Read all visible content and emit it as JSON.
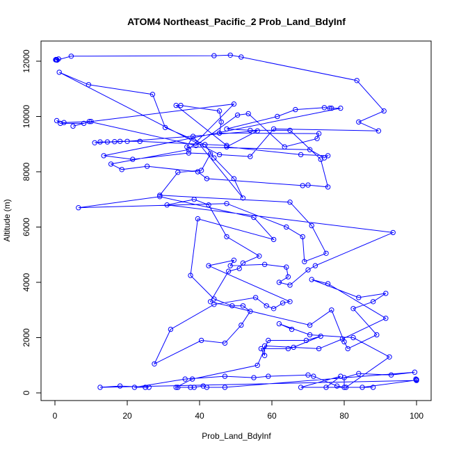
{
  "chart_data": {
    "type": "line",
    "title": "ATOM4 Northeast_Pacific_2 Prob_Land_BdyInf",
    "xlabel": "Prob_Land_BdyInf",
    "ylabel": "Altitude (m)",
    "xlim": [
      0,
      100
    ],
    "ylim": [
      0,
      12500
    ],
    "xticks": [
      0,
      20,
      40,
      60,
      80,
      100
    ],
    "yticks": [
      0,
      2000,
      4000,
      6000,
      8000,
      10000,
      12000
    ],
    "grid": false,
    "legend": "none",
    "series_color": "#0000ff",
    "marker": "open-circle",
    "points": [
      [
        0.2,
        12050
      ],
      [
        0.5,
        12050
      ],
      [
        1,
        12080
      ],
      [
        0.3,
        12060
      ],
      [
        0.6,
        12040
      ],
      [
        4.5,
        12180
      ],
      [
        44,
        12200
      ],
      [
        48.5,
        12220
      ],
      [
        51.5,
        12150
      ],
      [
        83.5,
        11300
      ],
      [
        91,
        10200
      ],
      [
        84,
        9800
      ],
      [
        89.5,
        9480
      ],
      [
        60.5,
        9550
      ],
      [
        54,
        8550
      ],
      [
        45.5,
        8620
      ],
      [
        1.2,
        11600
      ],
      [
        9.3,
        11150
      ],
      [
        27,
        10800
      ],
      [
        30.5,
        9600
      ],
      [
        41.5,
        8980
      ],
      [
        44,
        8500
      ],
      [
        49.5,
        7750
      ],
      [
        52,
        7050
      ],
      [
        38.2,
        9280
      ],
      [
        36.5,
        8900
      ],
      [
        70.5,
        8800
      ],
      [
        74.5,
        8500
      ],
      [
        75.5,
        8580
      ],
      [
        68,
        8620
      ],
      [
        47.5,
        8900
      ],
      [
        56,
        9480
      ],
      [
        20,
        9100
      ],
      [
        11,
        9050
      ],
      [
        12.5,
        9080
      ],
      [
        14.5,
        9080
      ],
      [
        16.5,
        9090
      ],
      [
        18,
        9100
      ],
      [
        23.5,
        9100
      ],
      [
        47.5,
        8950
      ],
      [
        33.5,
        10400
      ],
      [
        34.8,
        10400
      ],
      [
        45.5,
        10200
      ],
      [
        46,
        9800
      ],
      [
        45.5,
        9400
      ],
      [
        73,
        9380
      ],
      [
        72.5,
        9200
      ],
      [
        63.5,
        8900
      ],
      [
        53.5,
        10100
      ],
      [
        50.5,
        10050
      ],
      [
        39,
        8950
      ],
      [
        9.5,
        9820
      ],
      [
        2.5,
        9780
      ],
      [
        0.5,
        9850
      ],
      [
        1.5,
        9750
      ],
      [
        8,
        9750
      ],
      [
        5,
        9650
      ],
      [
        10,
        9820
      ],
      [
        49.5,
        10450
      ],
      [
        37,
        8800
      ],
      [
        15.5,
        8280
      ],
      [
        18.5,
        8080
      ],
      [
        25.5,
        8200
      ],
      [
        39.5,
        8000
      ],
      [
        42,
        7750
      ],
      [
        68.5,
        7500
      ],
      [
        70,
        7520
      ],
      [
        75.5,
        7450
      ],
      [
        73.5,
        8450
      ],
      [
        65,
        9500
      ],
      [
        54,
        9500
      ],
      [
        47.5,
        9550
      ],
      [
        61.5,
        10000
      ],
      [
        66.5,
        10250
      ],
      [
        74.5,
        10320
      ],
      [
        76,
        10300
      ],
      [
        76.5,
        10300
      ],
      [
        79,
        10300
      ],
      [
        13.5,
        8580
      ],
      [
        21.5,
        8450
      ],
      [
        37,
        8680
      ],
      [
        43,
        8650
      ],
      [
        40.5,
        8050
      ],
      [
        34,
        7980
      ],
      [
        29,
        7150
      ],
      [
        65,
        6900
      ],
      [
        71,
        6050
      ],
      [
        75,
        5050
      ],
      [
        69,
        4750
      ],
      [
        68.5,
        5650
      ],
      [
        64,
        6000
      ],
      [
        47.5,
        6850
      ],
      [
        6.5,
        6700
      ],
      [
        29,
        7100
      ],
      [
        55,
        6350
      ],
      [
        60.5,
        5550
      ],
      [
        39.5,
        6300
      ],
      [
        37.5,
        4250
      ],
      [
        44,
        3400
      ],
      [
        49,
        3150
      ],
      [
        52,
        3150
      ],
      [
        54,
        2950
      ],
      [
        51.5,
        2450
      ],
      [
        47,
        1800
      ],
      [
        40.5,
        1900
      ],
      [
        27.5,
        1050
      ],
      [
        32,
        2300
      ],
      [
        44,
        3200
      ],
      [
        55.5,
        3450
      ],
      [
        58.5,
        3150
      ],
      [
        60.5,
        3050
      ],
      [
        63,
        3250
      ],
      [
        65,
        3300
      ],
      [
        42.5,
        4600
      ],
      [
        49.5,
        4800
      ],
      [
        48.5,
        4600
      ],
      [
        58,
        4650
      ],
      [
        64,
        4550
      ],
      [
        64.5,
        4200
      ],
      [
        62,
        4000
      ],
      [
        65,
        3900
      ],
      [
        70,
        4450
      ],
      [
        72,
        4600
      ],
      [
        93.5,
        5800
      ],
      [
        31,
        6800
      ],
      [
        38.5,
        7000
      ],
      [
        42.5,
        6800
      ],
      [
        47.5,
        5650
      ],
      [
        56.5,
        4950
      ],
      [
        52,
        4700
      ],
      [
        51,
        4500
      ],
      [
        48,
        4400
      ],
      [
        43,
        3300
      ],
      [
        70.5,
        2450
      ],
      [
        76.5,
        3000
      ],
      [
        80,
        1850
      ],
      [
        81,
        1600
      ],
      [
        89,
        2100
      ],
      [
        82.5,
        3050
      ],
      [
        88,
        3300
      ],
      [
        91.5,
        3600
      ],
      [
        84,
        3450
      ],
      [
        71,
        4100
      ],
      [
        75.5,
        3950
      ],
      [
        91.5,
        2700
      ],
      [
        79.5,
        1950
      ],
      [
        73,
        1600
      ],
      [
        58,
        1700
      ],
      [
        58,
        1350
      ],
      [
        57,
        1600
      ],
      [
        64.5,
        1600
      ],
      [
        66,
        1650
      ],
      [
        73.5,
        2050
      ],
      [
        69.5,
        1900
      ],
      [
        59,
        1900
      ],
      [
        56,
        1000
      ],
      [
        38,
        500
      ],
      [
        33.5,
        200
      ],
      [
        34,
        200
      ],
      [
        37.5,
        200
      ],
      [
        38.5,
        200
      ],
      [
        41,
        250
      ],
      [
        42,
        200
      ],
      [
        47,
        200
      ],
      [
        99.5,
        750
      ],
      [
        93,
        650
      ],
      [
        84,
        700
      ],
      [
        80,
        550
      ],
      [
        80,
        200
      ],
      [
        78,
        250
      ],
      [
        71.5,
        600
      ],
      [
        70,
        650
      ],
      [
        59,
        600
      ],
      [
        55,
        550
      ],
      [
        47,
        600
      ],
      [
        36,
        500
      ],
      [
        22,
        200
      ],
      [
        25,
        200
      ],
      [
        26,
        200
      ],
      [
        18,
        250
      ],
      [
        12.5,
        200
      ],
      [
        100,
        450
      ],
      [
        99.8,
        500
      ],
      [
        100,
        480
      ],
      [
        99.9,
        460
      ],
      [
        85,
        200
      ],
      [
        88,
        200
      ],
      [
        75,
        200
      ],
      [
        79,
        600
      ],
      [
        68,
        200
      ],
      [
        80.5,
        200
      ],
      [
        92.5,
        1300
      ],
      [
        82.5,
        2000
      ],
      [
        70.5,
        2100
      ],
      [
        62,
        2500
      ],
      [
        65.5,
        2300
      ]
    ]
  }
}
